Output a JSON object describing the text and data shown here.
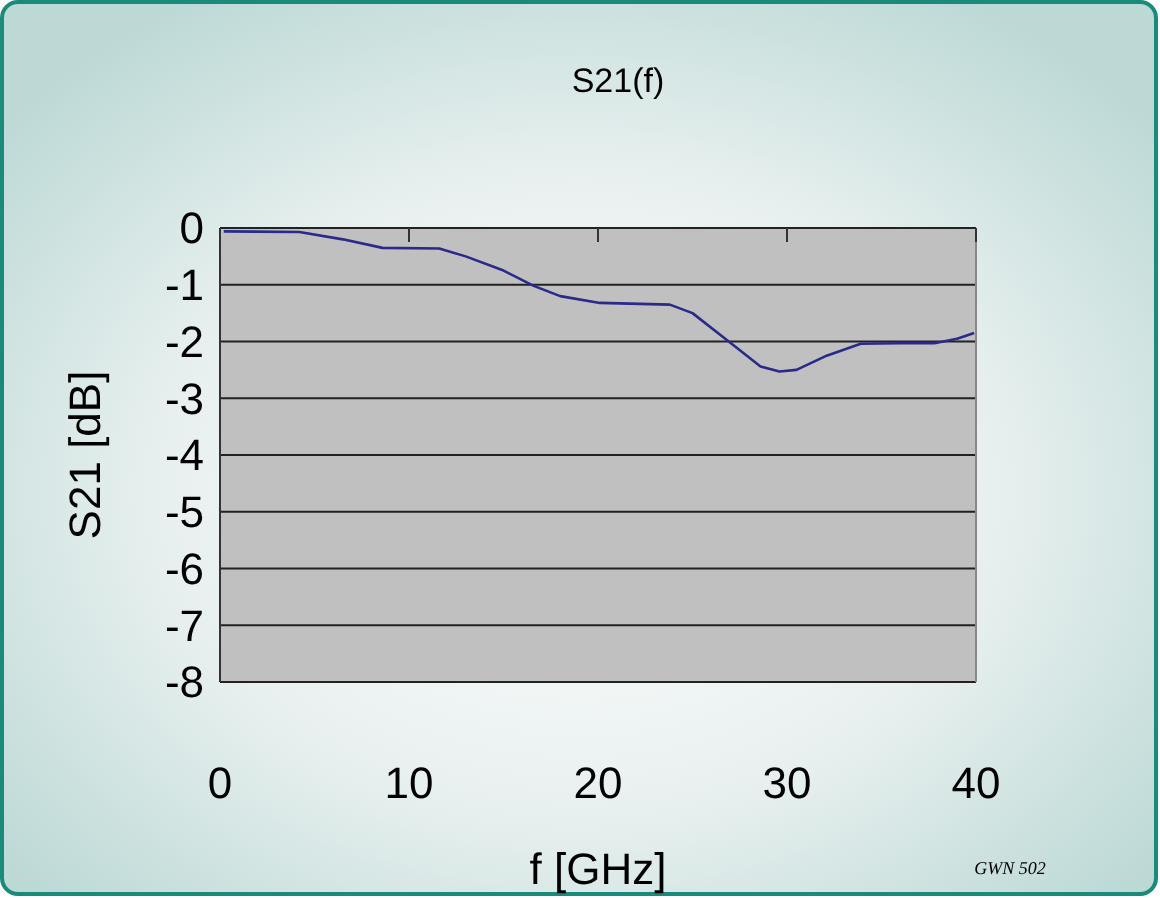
{
  "chart_data": {
    "type": "line",
    "title": "S21(f)",
    "xlabel": "f [GHz]",
    "ylabel": "S21 [dB]",
    "xlim": [
      0,
      40
    ],
    "xticks": [
      0,
      10,
      20,
      30,
      40
    ],
    "ylim": [
      -8,
      0
    ],
    "yticks": [
      0,
      -1,
      -2,
      -3,
      -4,
      -5,
      -6,
      -7,
      -8
    ],
    "grid": "y",
    "line_style": "solid",
    "annotations": [
      "GWN 502"
    ],
    "series": [
      {
        "color": "#2a2a8a",
        "x": [
          0.2,
          4.2,
          6.5,
          8.6,
          11.6,
          13,
          15,
          16.6,
          18,
          20.1,
          23.8,
          25,
          26.8,
          28.6,
          29.6,
          30.5,
          32.1,
          33.9,
          36,
          37.8,
          39,
          39.9
        ],
        "values": [
          -0.06,
          -0.07,
          -0.2,
          -0.35,
          -0.36,
          -0.5,
          -0.75,
          -1.02,
          -1.2,
          -1.32,
          -1.35,
          -1.5,
          -1.97,
          -2.44,
          -2.53,
          -2.5,
          -2.25,
          -2.04,
          -2.03,
          -2.03,
          -1.95,
          -1.85
        ]
      }
    ]
  }
}
